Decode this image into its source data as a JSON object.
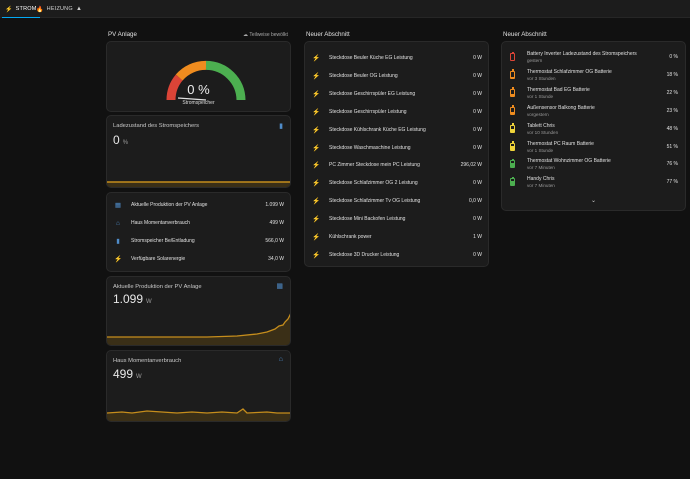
{
  "tabs": [
    {
      "label": "STROM",
      "icon": "lightning-icon"
    },
    {
      "label": "HEIZUNG",
      "icon": "fire-icon"
    },
    {
      "label": "",
      "icon": "network-icon"
    }
  ],
  "col1": {
    "title": "PV Anlage",
    "badge": "Teilweise bewölkt",
    "gauge": {
      "value": "0 %",
      "label": "Stromspeicher",
      "percent": 0
    },
    "charge": {
      "title": "Ladezustand des Stromspeichers",
      "value": "0",
      "unit": "%"
    },
    "entities": [
      {
        "icon": "solar-panel-icon",
        "label": "Aktuelle Produktion der PV Anlage",
        "value": "1.099 W"
      },
      {
        "icon": "home-icon",
        "label": "Haus Momentanverbrauch",
        "value": "499 W"
      },
      {
        "icon": "battery-icon",
        "label": "Stromspeicher Be/Entladung",
        "value": "566,0 W"
      },
      {
        "icon": "lightning-icon",
        "label": "Verfügbare Solarenergie",
        "value": "34,0 W"
      }
    ],
    "production": {
      "title": "Aktuelle Produktion der PV Anlage",
      "value": "1.099",
      "unit": "W"
    },
    "consumption": {
      "title": "Haus Momentanverbrauch",
      "value": "499",
      "unit": "W"
    }
  },
  "col2": {
    "title": "Neuer Abschnitt",
    "rows": [
      {
        "label": "Steckdose Beuler Küche EG Leistung",
        "value": "0 W"
      },
      {
        "label": "Steckdose Beuler OG Leistung",
        "value": "0 W"
      },
      {
        "label": "Steckdose Geschirrspüler EG Leistung",
        "value": "0 W"
      },
      {
        "label": "Steckdose Geschirrspüler Leistung",
        "value": "0 W"
      },
      {
        "label": "Steckdose Kühlschrank Küche EG Leistung",
        "value": "0 W"
      },
      {
        "label": "Steckdose Waschmaschine Leistung",
        "value": "0 W"
      },
      {
        "label": "PC Zimmer Steckdose mein PC Leistung",
        "value": "296,02 W"
      },
      {
        "label": "Steckdose Schlafzimmer OG 2 Leistung",
        "value": "0 W"
      },
      {
        "label": "Steckdose Schlafzimmer Tv OG Leistung",
        "value": "0,0 W"
      },
      {
        "label": "Steckdose Mini Backofen Leistung",
        "value": "0 W"
      },
      {
        "label": "Kühlschrank power",
        "value": "1 W"
      },
      {
        "label": "Steckdose 3D Drucker Leistung",
        "value": "0 W"
      }
    ]
  },
  "col3": {
    "title": "Neuer Abschnitt",
    "batteries": [
      {
        "name": "Battery Inverter Ladezustand des Stromspeichers",
        "sub": "gestern",
        "value": "0 %",
        "level": 0,
        "color": "#db4437"
      },
      {
        "name": "Thermostat Schlafzimmer OG Batterie",
        "sub": "vor 3 Stunden",
        "value": "18 %",
        "level": 0.18,
        "color": "#ef8c1f"
      },
      {
        "name": "Thermostat Bad EG Batterie",
        "sub": "vor 1 Stunde",
        "value": "22 %",
        "level": 0.22,
        "color": "#ef8c1f"
      },
      {
        "name": "Außensensor Balkong Batterie",
        "sub": "vorgestern",
        "value": "23 %",
        "level": 0.23,
        "color": "#ef8c1f"
      },
      {
        "name": "Tablett Chris",
        "sub": "vor 10 Stunden",
        "value": "48 %",
        "level": 0.48,
        "color": "#f0d43a"
      },
      {
        "name": "Thermostat PC Raum Batterie",
        "sub": "vor 1 Stunde",
        "value": "51 %",
        "level": 0.51,
        "color": "#f0d43a"
      },
      {
        "name": "Thermostat Wohnzimmer OG Batterie",
        "sub": "vor 7 Minuten",
        "value": "76 %",
        "level": 0.76,
        "color": "#4caf50"
      },
      {
        "name": "Handy Chris",
        "sub": "vor 7 Minuten",
        "value": "77 %",
        "level": 0.77,
        "color": "#4caf50"
      }
    ],
    "expand_icon": "chevron-down-icon"
  },
  "colors": {
    "accent": "#03a9f4",
    "chart_line": "#c58d1c",
    "icon_blue": "#4f8cc9"
  }
}
